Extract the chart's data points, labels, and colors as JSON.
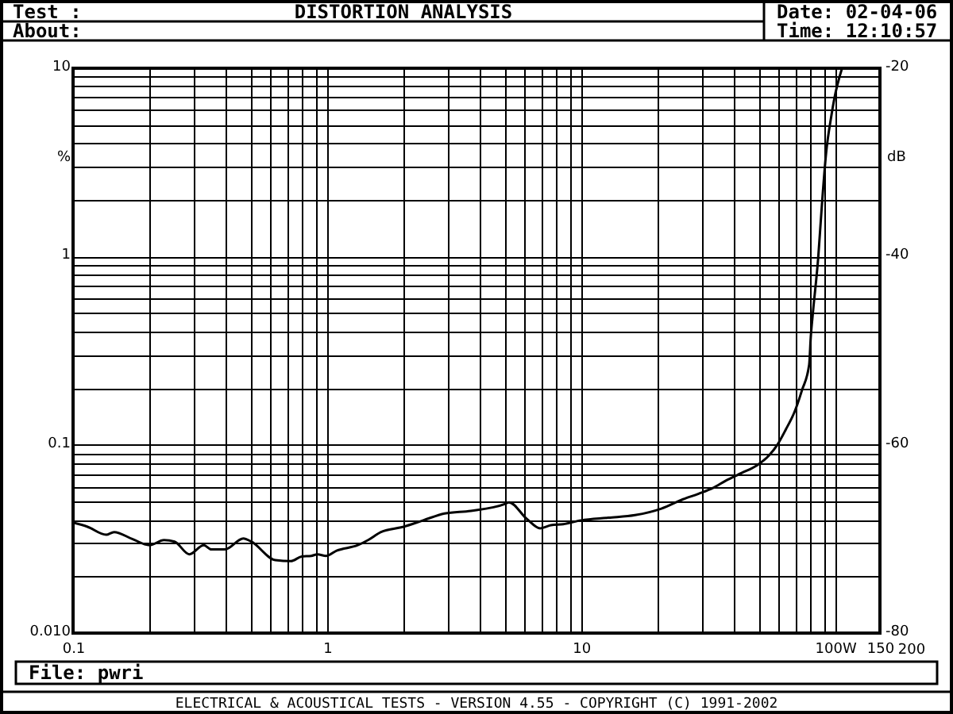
{
  "chart_data": {
    "type": "line",
    "title": "DISTORTION ANALYSIS",
    "ylabel": "%",
    "y2label": "dB",
    "annotations": [
      "Test :",
      "About:",
      "Date: 02-04-06",
      "Time: 12:10:57",
      "File: pwri",
      "ELECTRICAL & ACOUSTICAL TESTS - VERSION 4.55 - COPYRIGHT (C) 1991-2002",
      "200"
    ],
    "log": "xy",
    "grid": true,
    "line_style": "solid",
    "xlim": [
      0.1,
      150
    ],
    "xticks": [
      0.1,
      {
        "value": 0.2,
        "label": null
      },
      {
        "value": 0.3,
        "label": null
      },
      {
        "value": 0.4,
        "label": null
      },
      {
        "value": 0.5,
        "label": null
      },
      {
        "value": 0.6,
        "label": null
      },
      {
        "value": 0.7,
        "label": null
      },
      {
        "value": 0.8,
        "label": null
      },
      {
        "value": 0.9,
        "label": null
      },
      1,
      {
        "value": 2,
        "label": null
      },
      {
        "value": 3,
        "label": null
      },
      {
        "value": 4,
        "label": null
      },
      {
        "value": 5,
        "label": null
      },
      {
        "value": 6,
        "label": null
      },
      {
        "value": 7,
        "label": null
      },
      {
        "value": 8,
        "label": null
      },
      {
        "value": 9,
        "label": null
      },
      10,
      {
        "value": 20,
        "label": null
      },
      {
        "value": 30,
        "label": null
      },
      {
        "value": 40,
        "label": null
      },
      {
        "value": 50,
        "label": null
      },
      {
        "value": 60,
        "label": null
      },
      {
        "value": 70,
        "label": null
      },
      {
        "value": 80,
        "label": null
      },
      {
        "value": 90,
        "label": null
      },
      {
        "value": 100,
        "label": "100W"
      },
      150
    ],
    "ylim": [
      0.01,
      10
    ],
    "yticks": [
      {
        "value": 0.01,
        "label": "0.010"
      },
      {
        "value": 0.02,
        "label": null
      },
      {
        "value": 0.03,
        "label": null
      },
      {
        "value": 0.04,
        "label": null
      },
      {
        "value": 0.05,
        "label": null
      },
      {
        "value": 0.06,
        "label": null
      },
      {
        "value": 0.07,
        "label": null
      },
      {
        "value": 0.08,
        "label": null
      },
      {
        "value": 0.09,
        "label": null
      },
      0.1,
      {
        "value": 0.2,
        "label": null
      },
      {
        "value": 0.3,
        "label": null
      },
      {
        "value": 0.4,
        "label": null
      },
      {
        "value": 0.5,
        "label": null
      },
      {
        "value": 0.6,
        "label": null
      },
      {
        "value": 0.7,
        "label": null
      },
      {
        "value": 0.8,
        "label": null
      },
      {
        "value": 0.9,
        "label": null
      },
      1,
      {
        "value": 2,
        "label": null
      },
      {
        "value": 3,
        "label": null
      },
      {
        "value": 4,
        "label": null
      },
      {
        "value": 5,
        "label": null
      },
      {
        "value": 6,
        "label": null
      },
      {
        "value": 7,
        "label": null
      },
      {
        "value": 8,
        "label": null
      },
      {
        "value": 9,
        "label": null
      },
      10
    ],
    "y2lim": [
      -80,
      -20
    ],
    "y2ticks": [
      -80,
      -60,
      -40,
      -20
    ],
    "series": [
      {
        "color": "#000000",
        "x": [
          0.1,
          0.114,
          0.135,
          0.145,
          0.171,
          0.2,
          0.228,
          0.251,
          0.287,
          0.327,
          0.35,
          0.396,
          0.468,
          0.503,
          0.625,
          0.72,
          0.794,
          0.866,
          0.916,
          0.99,
          1.09,
          1.32,
          1.45,
          1.63,
          2.0,
          2.39,
          2.9,
          3.68,
          5.0,
          5.2,
          6.1,
          6.9,
          7.6,
          8.5,
          10,
          12.8,
          16.3,
          20.7,
          25.2,
          29,
          33,
          37.1,
          43,
          49.4,
          55,
          59.2,
          64,
          69.1,
          74,
          79,
          80.1,
          81.8,
          85.7,
          88.6,
          92.1,
          96.6,
          99,
          106.4
        ],
        "values": [
          0.0386,
          0.0367,
          0.0333,
          0.0344,
          0.0316,
          0.0293,
          0.0312,
          0.0306,
          0.0262,
          0.0293,
          0.0278,
          0.0278,
          0.0318,
          0.0306,
          0.0244,
          0.0241,
          0.0255,
          0.0257,
          0.0262,
          0.0257,
          0.0274,
          0.0293,
          0.0312,
          0.0344,
          0.0367,
          0.0397,
          0.0432,
          0.0446,
          0.0484,
          0.0495,
          0.0405,
          0.036,
          0.0374,
          0.0379,
          0.0397,
          0.041,
          0.0423,
          0.0458,
          0.0514,
          0.055,
          0.059,
          0.0645,
          0.071,
          0.078,
          0.088,
          0.1,
          0.121,
          0.149,
          0.195,
          0.267,
          0.37,
          0.51,
          0.98,
          1.86,
          3.55,
          5.6,
          6.8,
          10
        ]
      }
    ]
  }
}
